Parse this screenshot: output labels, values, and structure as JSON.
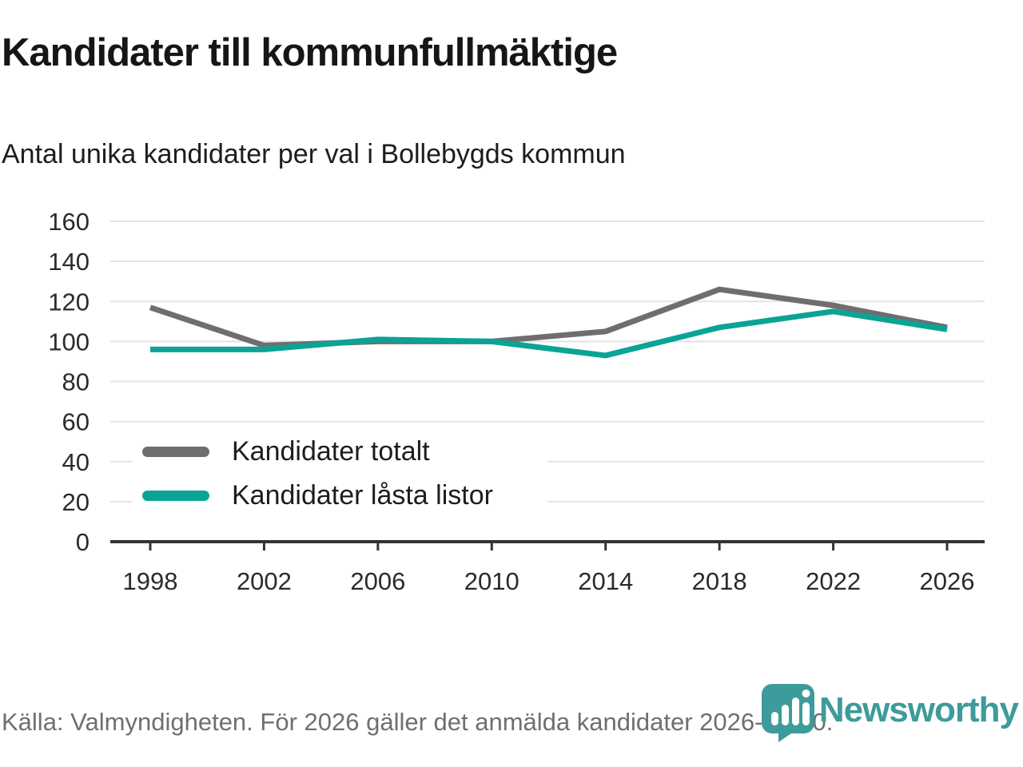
{
  "header": {
    "title": "Kandidater till kommunfullmäktige",
    "subtitle": "Antal unika kandidater per val i Bollebygds kommun"
  },
  "chart_data": {
    "type": "line",
    "title": "Kandidater till kommunfullmäktige",
    "subtitle": "Antal unika kandidater per val i Bollebygds kommun",
    "categories": [
      "1998",
      "2002",
      "2006",
      "2010",
      "2014",
      "2018",
      "2022",
      "2026"
    ],
    "series": [
      {
        "name": "Kandidater totalt",
        "color": "#706D70",
        "values": [
          117,
          98,
          100,
          100,
          105,
          126,
          118,
          107
        ]
      },
      {
        "name": "Kandidater låsta listor",
        "color": "#0AA396",
        "values": [
          96,
          96,
          101,
          100,
          93,
          107,
          115,
          106
        ]
      }
    ],
    "ylim": [
      0,
      160
    ],
    "yticks": [
      0,
      20,
      40,
      60,
      80,
      100,
      120,
      140,
      160
    ],
    "xlabel": "",
    "ylabel": "",
    "grid": "horizontal",
    "legend_position": "inside-bottom-left"
  },
  "footer": {
    "source": "Källa: Valmyndigheten. För 2026 gäller det anmälda kandidater 2026-04-10."
  },
  "logo": {
    "text": "Newsworthy",
    "icon": "newsworthy-pin-barchart-icon",
    "color": "#3E9B9B"
  },
  "colors": {
    "background": "#ffffff",
    "grid": "#e3e3e3",
    "axis": "#333333",
    "text": "#1d1d1d",
    "muted_text": "#6f6f6f"
  }
}
